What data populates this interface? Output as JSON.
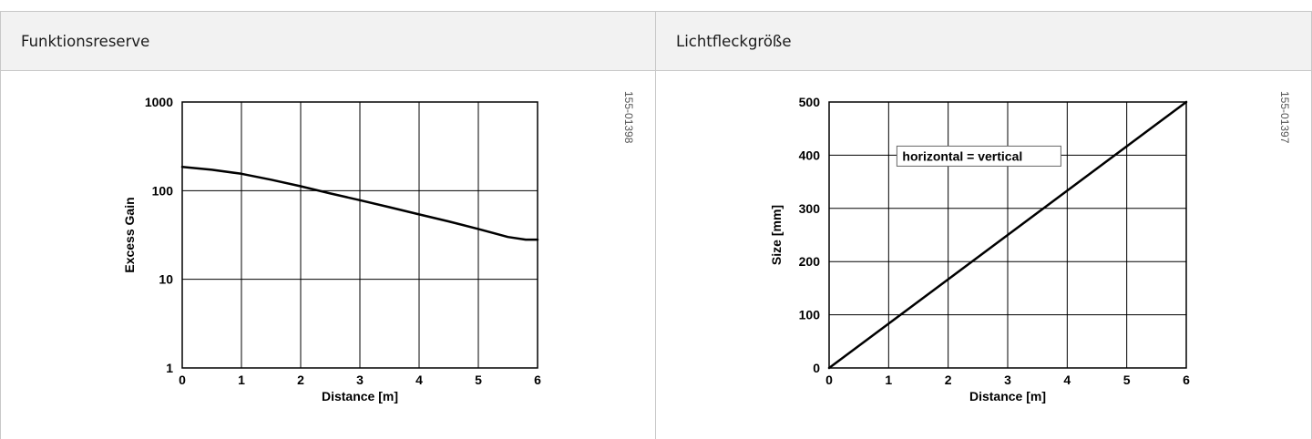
{
  "panels": [
    {
      "title": "Funktionsreserve",
      "code": "155-01398"
    },
    {
      "title": "Lichtfleckgröße",
      "code": "155-01397"
    }
  ],
  "chart_data": [
    {
      "type": "line",
      "xlabel": "Distance [m]",
      "ylabel": "Excess Gain",
      "xlim": [
        0,
        6
      ],
      "ylim": [
        1,
        1000
      ],
      "yscale": "log",
      "xticks": [
        "0",
        "1",
        "2",
        "3",
        "4",
        "5",
        "6"
      ],
      "yticks": [
        "1",
        "10",
        "100",
        "1000"
      ],
      "grid": true,
      "series": [
        {
          "x": [
            0,
            0.5,
            1,
            1.5,
            2,
            2.5,
            3,
            3.5,
            4,
            4.5,
            5,
            5.5,
            5.8,
            6
          ],
          "y": [
            185,
            172,
            155,
            133,
            112,
            93,
            78,
            65,
            54,
            45,
            37,
            30,
            28,
            28
          ]
        }
      ]
    },
    {
      "type": "line",
      "xlabel": "Distance [m]",
      "ylabel": "Size [mm]",
      "xlim": [
        0,
        6
      ],
      "ylim": [
        0,
        500
      ],
      "xticks": [
        "0",
        "1",
        "2",
        "3",
        "4",
        "5",
        "6"
      ],
      "yticks": [
        "0",
        "100",
        "200",
        "300",
        "400",
        "500"
      ],
      "grid": true,
      "annotation": "horizontal = vertical",
      "series": [
        {
          "x": [
            0,
            6
          ],
          "y": [
            0,
            500
          ]
        }
      ]
    }
  ]
}
